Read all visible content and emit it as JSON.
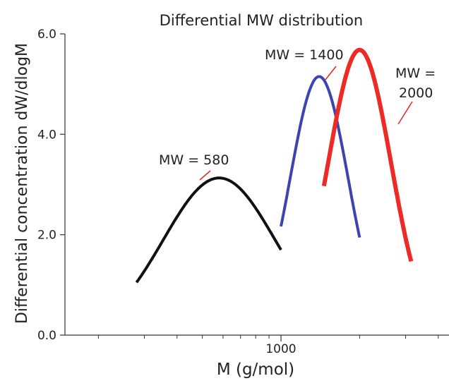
{
  "chart_data": {
    "type": "line",
    "title": "Differential MW distribution",
    "xlabel": "M (g/mol)",
    "ylabel": "Differential concentration dW/dlogM",
    "x_scale": "log",
    "xlim": [
      200,
      4000
    ],
    "ylim": [
      0,
      6
    ],
    "x_ticks": [
      {
        "value": 1000,
        "label": "1000"
      }
    ],
    "y_ticks": [
      {
        "value": 0,
        "label": "0.0"
      },
      {
        "value": 2,
        "label": "2.0"
      },
      {
        "value": 4,
        "label": "4.0"
      },
      {
        "value": 6,
        "label": "6.0"
      }
    ],
    "grid": false,
    "series": [
      {
        "label": "MW = 580",
        "label_lines": [
          "MW = 580"
        ],
        "color": "#111111",
        "peak_x": 580,
        "peak_y": 3.13,
        "sigma_logM": 0.214,
        "x_range": [
          280,
          1000
        ]
      },
      {
        "label": "MW = 1400",
        "label_lines": [
          "MW = 1400"
        ],
        "color": "#3b44b0",
        "peak_x": 1400,
        "peak_y": 5.15,
        "sigma_logM": 0.111,
        "x_range": [
          1000,
          2000
        ]
      },
      {
        "label": "MW = 2000",
        "label_lines": [
          "MW =",
          "2000"
        ],
        "color": "#ee2a24",
        "peak_x": 2000,
        "peak_y": 5.68,
        "sigma_logM": 0.12,
        "x_range": [
          1460,
          3150
        ]
      }
    ]
  }
}
